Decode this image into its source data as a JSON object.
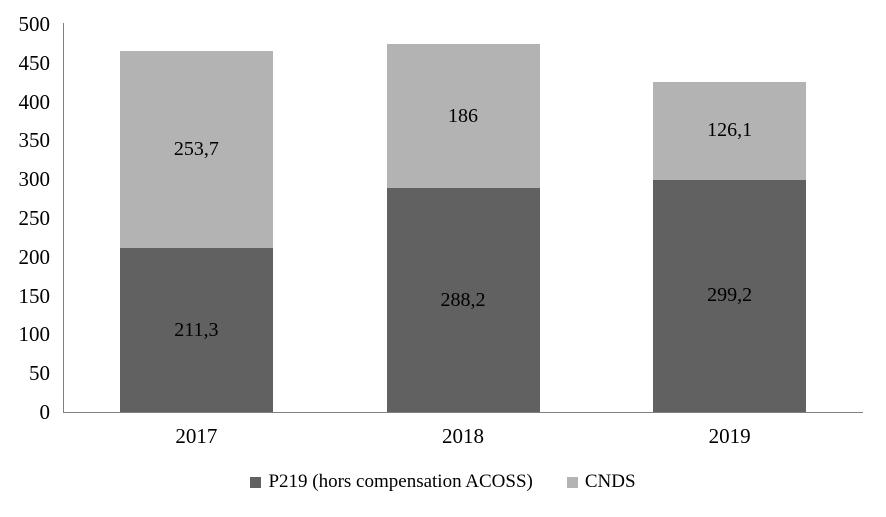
{
  "chart_data": {
    "type": "bar",
    "stacked": true,
    "title": "",
    "xlabel": "",
    "ylabel": "",
    "categories": [
      "2017",
      "2018",
      "2019"
    ],
    "series": [
      {
        "name": "P219 (hors compensation ACOSS)",
        "color": "#616161",
        "values": [
          211.3,
          288.2,
          299.2
        ],
        "value_labels": [
          "211,3",
          "288,2",
          "299,2"
        ]
      },
      {
        "name": "CNDS",
        "color": "#b3b3b3",
        "values": [
          253.7,
          186,
          126.1
        ],
        "value_labels": [
          "253,7",
          "186",
          "126,1"
        ]
      }
    ],
    "ylim": [
      0,
      500
    ],
    "yticks": [
      0,
      50,
      100,
      150,
      200,
      250,
      300,
      350,
      400,
      450,
      500
    ],
    "grid": false,
    "legend_position": "bottom"
  },
  "colors": {
    "axis": "#808080",
    "label_text": "#000000",
    "background": "#ffffff"
  }
}
